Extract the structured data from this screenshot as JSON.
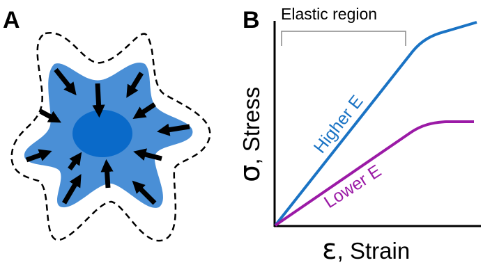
{
  "panel_a": {
    "letter": "A",
    "colors": {
      "cell_fill": "#4a8fd6",
      "nucleus_fill": "#0a6ac9",
      "outline_dash": "#000000",
      "arrow": "#000000"
    }
  },
  "panel_b": {
    "letter": "B",
    "bracket_label": "Elastic region",
    "y_symbol": "σ",
    "y_label": ", Stress",
    "x_symbol": "ε",
    "x_label": ", Strain",
    "curves": [
      {
        "label": "Higher E",
        "color": "#1a73c4"
      },
      {
        "label": "Lower E",
        "color": "#9b1aa6"
      }
    ]
  }
}
